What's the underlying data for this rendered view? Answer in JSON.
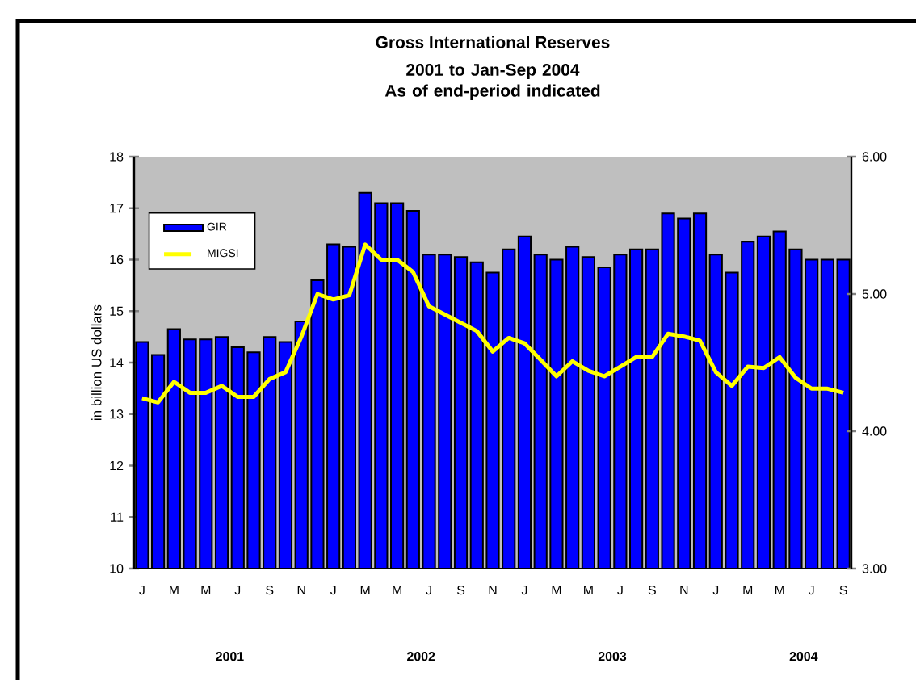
{
  "chart_data": {
    "type": "bar",
    "title": "Gross International Reserves",
    "subtitle": "2001  to  Jan-Sep  2004\nAs of end-period indicated",
    "ylabel": "in billion US dollars",
    "categories": [
      "J",
      null,
      "M",
      null,
      "M",
      null,
      "J",
      null,
      "S",
      null,
      "N",
      null,
      "J",
      null,
      "M",
      null,
      "M",
      null,
      "J",
      null,
      "S",
      null,
      "N",
      null,
      "J",
      null,
      "M",
      null,
      "M",
      null,
      "J",
      null,
      "S",
      null,
      "N",
      null,
      "J",
      null,
      "M",
      null,
      "M",
      null,
      "J",
      null,
      "S"
    ],
    "series": [
      {
        "name": "GIR",
        "color": "#0000ff",
        "values": [
          14.4,
          14.15,
          14.65,
          14.45,
          14.45,
          14.5,
          14.3,
          14.2,
          14.5,
          14.4,
          14.8,
          15.6,
          16.3,
          16.25,
          17.3,
          17.1,
          17.1,
          16.95,
          16.1,
          16.1,
          16.05,
          15.95,
          15.75,
          16.2,
          16.45,
          16.1,
          16.0,
          16.25,
          16.05,
          15.85,
          16.1,
          16.2,
          16.2,
          16.9,
          16.8,
          16.9,
          16.1,
          15.75,
          16.35,
          16.45,
          16.55,
          16.2,
          16.0,
          16.0,
          16.0
        ]
      },
      {
        "name": "MIGSI",
        "type": "line",
        "axis": "y2",
        "color": "#ffff00",
        "values": [
          4.24,
          4.21,
          4.36,
          4.28,
          4.28,
          4.33,
          4.25,
          4.25,
          4.38,
          4.43,
          4.69,
          5.0,
          4.96,
          4.99,
          5.36,
          5.25,
          5.25,
          5.16,
          4.91,
          4.85,
          4.79,
          4.73,
          4.58,
          4.68,
          4.64,
          4.52,
          4.4,
          4.51,
          4.44,
          4.4,
          4.47,
          4.54,
          4.54,
          4.71,
          4.69,
          4.66,
          4.43,
          4.33,
          4.47,
          4.46,
          4.54,
          4.39,
          4.31,
          4.31,
          4.28
        ]
      }
    ],
    "ylim": [
      10,
      18
    ],
    "yticks": [
      10,
      11,
      12,
      13,
      14,
      15,
      16,
      17,
      18
    ],
    "y2lim": [
      3,
      6
    ],
    "y2ticks": [
      {
        "value": 3,
        "label": "3.00"
      },
      {
        "value": 4,
        "label": "4.00"
      },
      {
        "value": 5,
        "label": "5.00"
      },
      {
        "value": 6,
        "label": "6.00"
      }
    ],
    "legend": "top left",
    "grid": false,
    "annotations": [
      "2001",
      "2002",
      "2003",
      "2004"
    ]
  }
}
